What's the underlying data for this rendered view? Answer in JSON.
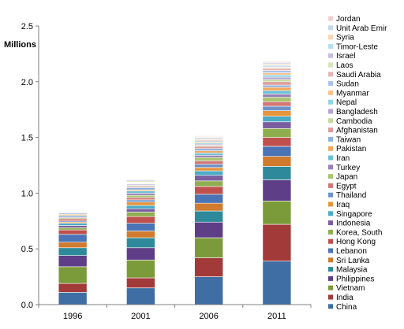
{
  "chart_data": {
    "type": "bar",
    "stacked": true,
    "categories": [
      "1996",
      "2001",
      "2006",
      "2011"
    ],
    "ylabel": "Millions",
    "ylim": [
      0,
      2.5
    ],
    "yticks": [
      "0.0",
      "0.5",
      "1.0",
      "1.5",
      "2.0",
      "2.5"
    ],
    "grid": false,
    "legend_position": "right",
    "series": [
      {
        "name": "China",
        "color": "#3e6ea3",
        "values": [
          0.11,
          0.15,
          0.25,
          0.39
        ]
      },
      {
        "name": "India",
        "color": "#a23a3a",
        "values": [
          0.08,
          0.09,
          0.17,
          0.33
        ]
      },
      {
        "name": "Vietnam",
        "color": "#7b9a3a",
        "values": [
          0.15,
          0.16,
          0.18,
          0.21
        ]
      },
      {
        "name": "Philippines",
        "color": "#5e3f87",
        "values": [
          0.1,
          0.11,
          0.14,
          0.19
        ]
      },
      {
        "name": "Malaysia",
        "color": "#2e8a9a",
        "values": [
          0.07,
          0.09,
          0.1,
          0.12
        ]
      },
      {
        "name": "Sri Lanka",
        "color": "#d07b2e",
        "values": [
          0.05,
          0.06,
          0.07,
          0.09
        ]
      },
      {
        "name": "Lebanon",
        "color": "#4a74b5",
        "values": [
          0.07,
          0.07,
          0.08,
          0.09
        ]
      },
      {
        "name": "Hong Kong",
        "color": "#c0504d",
        "values": [
          0.04,
          0.06,
          0.07,
          0.08
        ]
      },
      {
        "name": "Korea, South",
        "color": "#8fae4f",
        "values": [
          0.02,
          0.04,
          0.05,
          0.08
        ]
      },
      {
        "name": "Indonesia",
        "color": "#7a5ea0",
        "values": [
          0.02,
          0.03,
          0.05,
          0.06
        ]
      },
      {
        "name": "Singapore",
        "color": "#4bacc6",
        "values": [
          0.02,
          0.03,
          0.04,
          0.05
        ]
      },
      {
        "name": "Iraq",
        "color": "#e6943e",
        "values": [
          0.01,
          0.03,
          0.03,
          0.05
        ]
      },
      {
        "name": "Thailand",
        "color": "#6d93c9",
        "values": [
          0.01,
          0.02,
          0.03,
          0.04
        ]
      },
      {
        "name": "Egypt",
        "color": "#d27574",
        "values": [
          0.02,
          0.02,
          0.03,
          0.04
        ]
      },
      {
        "name": "Japan",
        "color": "#aac46f",
        "values": [
          0.01,
          0.02,
          0.03,
          0.04
        ]
      },
      {
        "name": "Turkey",
        "color": "#9781b7",
        "values": [
          0.01,
          0.02,
          0.02,
          0.03
        ]
      },
      {
        "name": "Iran",
        "color": "#6cc1d6",
        "values": [
          0.01,
          0.02,
          0.02,
          0.03
        ]
      },
      {
        "name": "Pakistan",
        "color": "#f2a85e",
        "values": [
          0.01,
          0.01,
          0.02,
          0.03
        ]
      },
      {
        "name": "Taiwan",
        "color": "#8fb0dc",
        "values": [
          0.01,
          0.02,
          0.02,
          0.02
        ]
      },
      {
        "name": "Afghanistan",
        "color": "#df9b9a",
        "values": [
          0.005,
          0.01,
          0.02,
          0.03
        ]
      },
      {
        "name": "Cambodia",
        "color": "#c5d89f",
        "values": [
          0.005,
          0.01,
          0.01,
          0.02
        ]
      },
      {
        "name": "Bangladesh",
        "color": "#b3a3cf",
        "values": [
          0.005,
          0.01,
          0.01,
          0.02
        ]
      },
      {
        "name": "Nepal",
        "color": "#93d2e3",
        "values": [
          0.002,
          0.005,
          0.01,
          0.02
        ]
      },
      {
        "name": "Myanmar",
        "color": "#f6c28f",
        "values": [
          0.002,
          0.005,
          0.01,
          0.02
        ]
      },
      {
        "name": "Sudan",
        "color": "#a9c3e6",
        "values": [
          0.002,
          0.005,
          0.01,
          0.02
        ]
      },
      {
        "name": "Saudi Arabia",
        "color": "#e8b5b4",
        "values": [
          0.002,
          0.005,
          0.01,
          0.02
        ]
      },
      {
        "name": "Laos",
        "color": "#d6e4bb",
        "values": [
          0.005,
          0.01,
          0.01,
          0.01
        ]
      },
      {
        "name": "Israel",
        "color": "#c9bde0",
        "values": [
          0.005,
          0.01,
          0.01,
          0.01
        ]
      },
      {
        "name": "Timor-Leste",
        "color": "#b4e0ec",
        "values": [
          0.002,
          0.003,
          0.005,
          0.01
        ]
      },
      {
        "name": "Syria",
        "color": "#f9d6b5",
        "values": [
          0.003,
          0.005,
          0.007,
          0.01
        ]
      },
      {
        "name": "Unit Arab Emir",
        "color": "#c6d6ee",
        "values": [
          0.001,
          0.003,
          0.005,
          0.01
        ]
      },
      {
        "name": "Jordan",
        "color": "#f0cfce",
        "values": [
          0.002,
          0.003,
          0.005,
          0.01
        ]
      }
    ]
  }
}
